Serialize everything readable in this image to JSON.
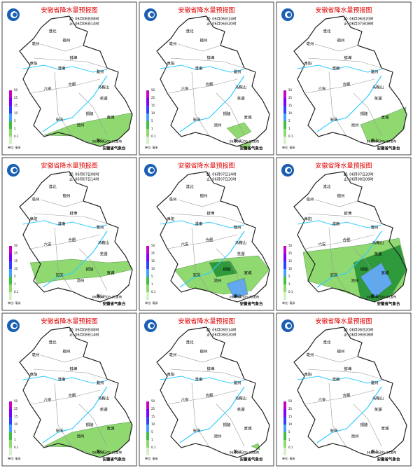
{
  "header": {
    "title": "安徽省降水量预报图",
    "unit": "单位: 毫米",
    "issued": "06月06日05:30发布",
    "org": "安徽省气象台"
  },
  "legend_ticks": [
    "50",
    "25",
    "15",
    "10",
    "5",
    "1",
    "0.1"
  ],
  "cities": [
    "淮北",
    "亳州",
    "宿州",
    "阜阳",
    "蚌埠",
    "淮南",
    "滁州",
    "六安",
    "合肥",
    "马鞍山",
    "芜湖",
    "铜陵",
    "宣城",
    "安庆",
    "池州",
    "黄山"
  ],
  "panels": [
    {
      "start": "起: 06月06日08时",
      "end": "止: 06月06日14时"
    },
    {
      "start": "起: 06月06日14时",
      "end": "止: 06月06日20时"
    },
    {
      "start": "起: 06月06日20时",
      "end": "止: 06月07日08时"
    },
    {
      "start": "起: 06月07日08时",
      "end": "止: 06月07日14时"
    },
    {
      "start": "起: 06月07日14时",
      "end": "止: 06月07日20时"
    },
    {
      "start": "起: 06月07日20时",
      "end": "止: 06月08日08时"
    },
    {
      "start": "起: 06月08日08时",
      "end": "止: 06月08日14时"
    },
    {
      "start": "起: 06月08日14时",
      "end": "止: 06月08日20时"
    },
    {
      "start": "起: 06月08日20时",
      "end": "止: 06月09日08时"
    }
  ]
}
